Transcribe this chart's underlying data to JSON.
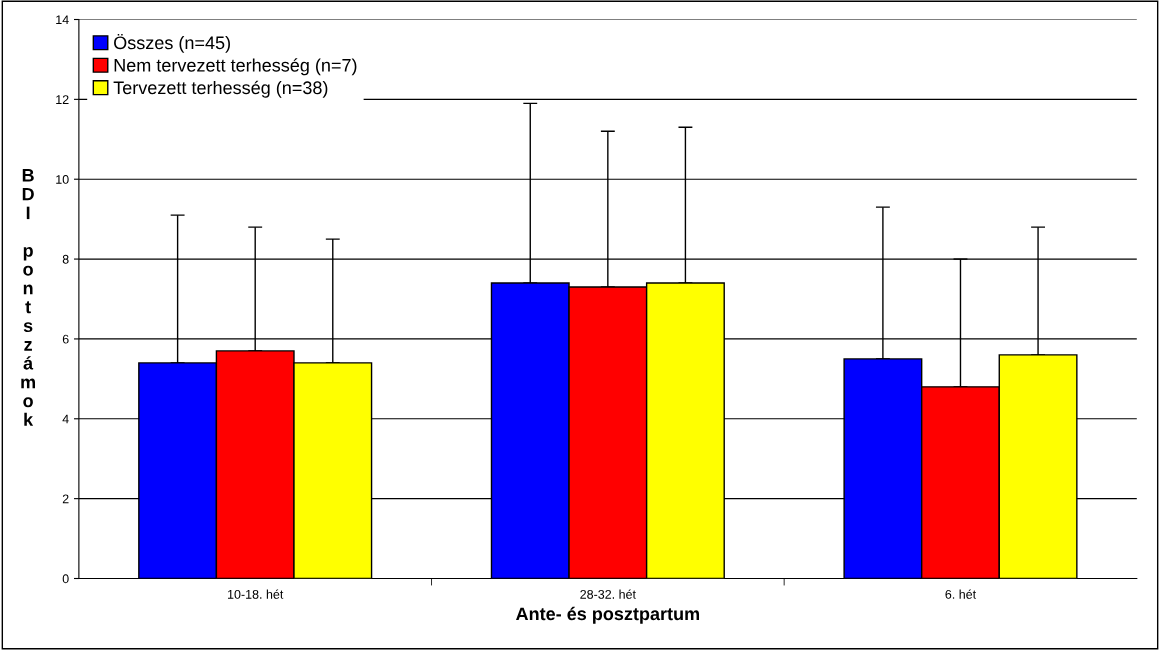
{
  "chart_data": {
    "type": "bar",
    "xlabel": "Ante- és posztpartum",
    "ylabel": "BDI pontszámok",
    "categories": [
      "10-18. hét",
      "28-32. hét",
      "6. hét"
    ],
    "series": [
      {
        "name": "Összes (n=45)",
        "color": "#0000ff",
        "values": [
          5.4,
          7.4,
          5.5
        ],
        "errors": [
          [
            5.4,
            9.1
          ],
          [
            7.4,
            11.9
          ],
          [
            5.5,
            9.3
          ]
        ]
      },
      {
        "name": "Nem tervezett terhesség (n=7)",
        "color": "#ff0000",
        "values": [
          5.7,
          7.3,
          4.8
        ],
        "errors": [
          [
            5.7,
            8.8
          ],
          [
            7.3,
            11.2
          ],
          [
            4.8,
            8.0
          ]
        ]
      },
      {
        "name": "Tervezett terhesség (n=38)",
        "color": "#ffff00",
        "values": [
          5.4,
          7.4,
          5.6
        ],
        "errors": [
          [
            5.4,
            8.5
          ],
          [
            7.4,
            11.3
          ],
          [
            5.6,
            8.8
          ]
        ]
      }
    ],
    "ylim": [
      0,
      14
    ],
    "yticks": [
      0,
      2,
      4,
      6,
      8,
      10,
      12,
      14
    ],
    "grid": "y",
    "legend": "top left"
  }
}
